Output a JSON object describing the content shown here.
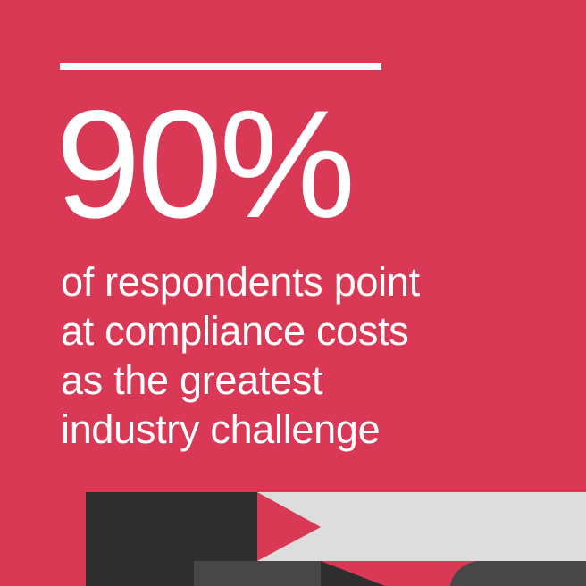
{
  "headline": {
    "value": "90%"
  },
  "body": {
    "lines": [
      "of respondents point",
      "at compliance costs",
      "as the greatest",
      "industry challenge"
    ]
  },
  "colors": {
    "background": "#da3955",
    "dark": "#2e2e2e",
    "grey": "#474747",
    "light": "#dddddd",
    "text": "#ffffff"
  }
}
